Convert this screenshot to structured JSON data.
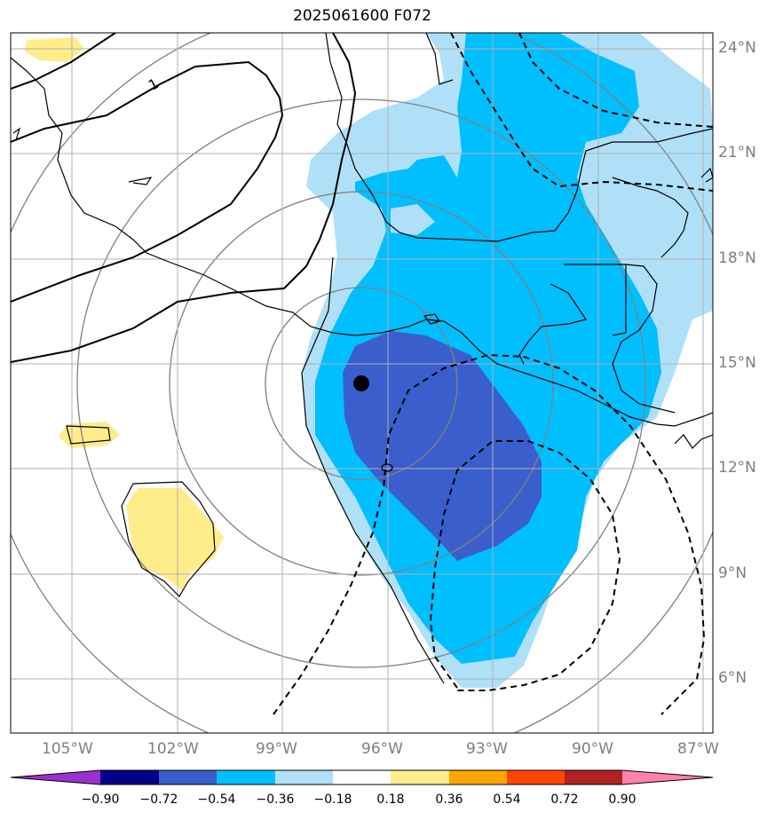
{
  "title": "2025061600 F072",
  "map": {
    "lat_labels": [
      "24°N",
      "21°N",
      "18°N",
      "15°N",
      "12°N",
      "9°N",
      "6°N"
    ],
    "lon_labels": [
      "105°W",
      "102°W",
      "99°W",
      "96°W",
      "93°W",
      "90°W",
      "87°W"
    ],
    "contour_label": "1",
    "storm_marker": {
      "lat": 14.4,
      "lon": -96.8
    },
    "colors": {
      "neg_0_90": "#9932cc",
      "neg_0_72": "#00008b",
      "neg_0_54": "#3a5fcd",
      "neg_0_36": "#00bfff",
      "neg_0_18": "#b0e0f8",
      "neutral": "#ffffff",
      "pos_0_18": "#ffec8b",
      "pos_0_36": "#ffa500",
      "pos_0_54": "#ff4500",
      "pos_0_72": "#b22222",
      "pos_0_90": "#ff82ab"
    }
  },
  "colorbar": {
    "ticks": [
      "−0.90",
      "−0.72",
      "−0.54",
      "−0.36",
      "−0.18",
      "0.18",
      "0.36",
      "0.54",
      "0.72",
      "0.90"
    ],
    "colors": [
      "#9932cc",
      "#00008b",
      "#3a5fcd",
      "#00bfff",
      "#b0e0f8",
      "#ffffff",
      "#ffec8b",
      "#ffa500",
      "#ff4500",
      "#b22222",
      "#ff82ab"
    ]
  }
}
